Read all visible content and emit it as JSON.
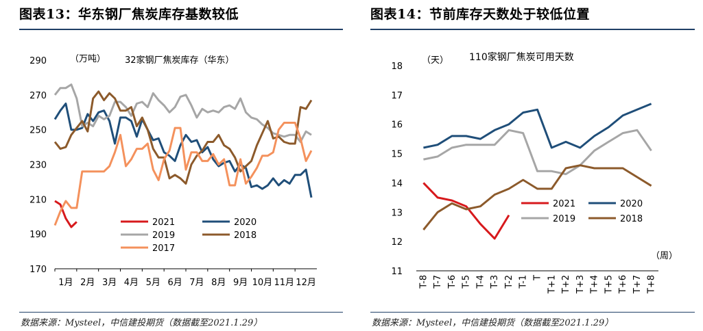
{
  "left": {
    "title": "图表13：华东钢厂焦炭库存基数较低",
    "source": "数据来源：Mysteel，中信建投期货（数据截至2021.1.29）"
  },
  "right": {
    "title": "图表14：节前库存天数处于较低位置",
    "source": "数据来源：Mysteel，中信建投期货（数据截至2021.1.29）"
  },
  "colors": {
    "2021": "#d7191c",
    "2020": "#1f4e79",
    "2019": "#a6a6a6",
    "2018": "#8c5a2b",
    "2017": "#f4915c",
    "rule": "#1f3f66"
  },
  "chart_data": [
    {
      "type": "line",
      "title": "32家钢厂焦炭库存（华东）",
      "ylabel": "（万吨）",
      "xlabel": "",
      "ylim": [
        170,
        290
      ],
      "yticks": [
        170,
        190,
        210,
        230,
        250,
        270,
        290
      ],
      "x_range": [
        0,
        12
      ],
      "xtick_labels": [
        "1月",
        "2月",
        "3月",
        "4月",
        "5月",
        "6月",
        "7月",
        "8月",
        "9月",
        "10月",
        "11月",
        "12月"
      ],
      "legend": "inside-bottom-left",
      "series": [
        {
          "name": "2021",
          "x": [
            0,
            0.25,
            0.5,
            0.75,
            1.0
          ],
          "y": [
            209,
            207,
            199,
            194,
            197
          ]
        },
        {
          "name": "2020",
          "x": [
            0,
            0.25,
            0.5,
            0.75,
            1.0,
            1.25,
            1.5,
            1.75,
            2.0,
            2.25,
            2.5,
            2.75,
            3.0,
            3.25,
            3.5,
            3.75,
            4.0,
            4.25,
            4.5,
            4.75,
            5.0,
            5.25,
            5.5,
            5.75,
            6.0,
            6.25,
            6.5,
            6.75,
            7.0,
            7.25,
            7.5,
            7.75,
            8.0,
            8.25,
            8.5,
            8.75,
            9.0,
            9.25,
            9.5,
            9.75,
            10.0,
            10.25,
            10.5,
            10.75,
            11.0,
            11.25,
            11.5,
            11.75
          ],
          "y": [
            256,
            261,
            265,
            250,
            250,
            251,
            259,
            255,
            260,
            261,
            255,
            242,
            257,
            257,
            255,
            246,
            256,
            250,
            244,
            245,
            237,
            235,
            232,
            241,
            247,
            243,
            244,
            237,
            240,
            233,
            229,
            231,
            232,
            226,
            230,
            228,
            217,
            218,
            216,
            218,
            222,
            218,
            221,
            219,
            224,
            224,
            227,
            211
          ]
        },
        {
          "name": "2019",
          "x": [
            0,
            0.25,
            0.5,
            0.75,
            1.0,
            1.25,
            1.5,
            1.75,
            2.0,
            2.25,
            2.5,
            2.75,
            3.0,
            3.25,
            3.5,
            3.75,
            4.0,
            4.25,
            4.5,
            4.75,
            5.0,
            5.25,
            5.5,
            5.75,
            6.0,
            6.25,
            6.5,
            6.75,
            7.0,
            7.25,
            7.5,
            7.75,
            8.0,
            8.25,
            8.5,
            8.75,
            9.0,
            9.25,
            9.5,
            9.75,
            10.0,
            10.25,
            10.5,
            10.75,
            11.0,
            11.25,
            11.5,
            11.75
          ],
          "y": [
            270,
            274,
            274,
            276,
            268,
            252,
            254,
            252,
            258,
            256,
            258,
            266,
            266,
            263,
            258,
            265,
            266,
            263,
            271,
            267,
            264,
            260,
            263,
            269,
            270,
            264,
            257,
            262,
            260,
            261,
            260,
            263,
            264,
            262,
            268,
            260,
            257,
            256,
            253,
            251,
            248,
            247,
            246,
            247,
            247,
            243,
            249,
            247
          ]
        },
        {
          "name": "2018",
          "x": [
            0,
            0.25,
            0.5,
            0.75,
            1.0,
            1.25,
            1.5,
            1.75,
            2.0,
            2.25,
            2.5,
            2.75,
            3.0,
            3.25,
            3.5,
            3.75,
            4.0,
            4.25,
            4.5,
            4.75,
            5.0,
            5.25,
            5.5,
            5.75,
            6.0,
            6.25,
            6.5,
            6.75,
            7.0,
            7.25,
            7.5,
            7.75,
            8.0,
            8.25,
            8.5,
            8.75,
            9.0,
            9.25,
            9.5,
            9.75,
            10.0,
            10.25,
            10.5,
            10.75,
            11.0,
            11.25,
            11.5,
            11.75
          ],
          "y": [
            243,
            239,
            240,
            247,
            251,
            255,
            249,
            268,
            272,
            267,
            271,
            268,
            261,
            261,
            263,
            252,
            257,
            250,
            239,
            234,
            234,
            222,
            224,
            222,
            219,
            230,
            235,
            238,
            243,
            243,
            247,
            241,
            239,
            234,
            226,
            229,
            232,
            241,
            248,
            255,
            245,
            246,
            243,
            242,
            242,
            263,
            262,
            267
          ]
        },
        {
          "name": "2017",
          "x": [
            0,
            0.25,
            0.5,
            0.75,
            1.0,
            1.25,
            1.5,
            1.75,
            2.0,
            2.25,
            2.5,
            2.75,
            3.0,
            3.25,
            3.5,
            3.75,
            4.0,
            4.25,
            4.5,
            4.75,
            5.0,
            5.25,
            5.5,
            5.75,
            6.0,
            6.25,
            6.5,
            6.75,
            7.0,
            7.25,
            7.5,
            7.75,
            8.0,
            8.25,
            8.5,
            8.75,
            9.0,
            9.25,
            9.5,
            9.75,
            10.0,
            10.25,
            10.5,
            10.75,
            11.0,
            11.25,
            11.5,
            11.75
          ],
          "y": [
            195,
            203,
            209,
            205,
            205,
            226,
            226,
            226,
            226,
            226,
            229,
            237,
            247,
            229,
            233,
            239,
            239,
            242,
            227,
            221,
            233,
            238,
            251,
            251,
            227,
            237,
            237,
            232,
            232,
            236,
            230,
            233,
            218,
            218,
            233,
            219,
            223,
            228,
            235,
            235,
            237,
            250,
            254,
            254,
            254,
            245,
            232,
            238
          ]
        }
      ]
    },
    {
      "type": "line",
      "title": "110家钢厂焦炭可用天数",
      "ylabel": "（天）",
      "xlabel": "（周）",
      "ylim": [
        11,
        18
      ],
      "yticks": [
        11,
        12,
        13,
        14,
        15,
        16,
        17,
        18
      ],
      "categories": [
        "T-8",
        "T-7",
        "T-6",
        "T-5",
        "T-4",
        "T-3",
        "T-2",
        "T-1",
        "T",
        "T+1",
        "T+2",
        "T+3",
        "T+4",
        "T+5",
        "T+6",
        "T+7",
        "T+8"
      ],
      "legend": "inside-bottom-left",
      "series": [
        {
          "name": "2021",
          "values": [
            14.0,
            13.5,
            13.4,
            13.2,
            12.6,
            12.1,
            12.9,
            null,
            null,
            null,
            null,
            null,
            null,
            null,
            null,
            null,
            null
          ]
        },
        {
          "name": "2020",
          "values": [
            15.2,
            15.3,
            15.6,
            15.6,
            15.5,
            15.8,
            16.0,
            16.4,
            16.5,
            15.2,
            15.4,
            15.2,
            15.6,
            15.9,
            16.3,
            16.5,
            16.7
          ]
        },
        {
          "name": "2019",
          "values": [
            14.8,
            14.9,
            15.2,
            15.3,
            15.3,
            15.3,
            15.8,
            15.7,
            14.4,
            14.4,
            14.3,
            14.6,
            15.1,
            15.4,
            15.7,
            15.8,
            15.1
          ]
        },
        {
          "name": "2018",
          "values": [
            12.4,
            13.0,
            13.3,
            13.1,
            13.2,
            13.6,
            13.8,
            14.1,
            13.8,
            13.8,
            14.5,
            14.6,
            14.5,
            14.5,
            14.5,
            14.2,
            13.9
          ]
        }
      ]
    }
  ]
}
